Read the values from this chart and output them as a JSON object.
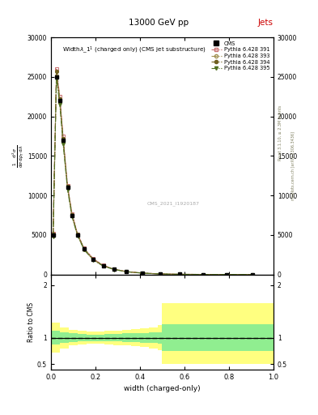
{
  "title_top": "13000 GeV pp",
  "title_right": "Jets",
  "xlabel": "width (charged-only)",
  "ylabel_ratio": "Ratio to CMS",
  "watermark": "CMS_2021_I1920187",
  "rivet_label": "Rivet 3.1.10, ≥ 2.3M events",
  "mcplots_label": "mcplots.cern.ch [arXiv:1306.3436]",
  "legend_entries": [
    "CMS",
    "Pythia 6.428 391",
    "Pythia 6.428 393",
    "Pythia 6.428 394",
    "Pythia 6.428 395"
  ],
  "x_data": [
    0.01,
    0.025,
    0.04,
    0.055,
    0.075,
    0.095,
    0.12,
    0.15,
    0.19,
    0.235,
    0.285,
    0.34,
    0.41,
    0.49,
    0.58,
    0.685,
    0.79,
    0.905
  ],
  "cms_y": [
    5000,
    25000,
    22000,
    17000,
    11000,
    7500,
    5000,
    3200,
    1900,
    1100,
    650,
    350,
    180,
    70,
    25,
    8,
    3,
    1
  ],
  "py391_y": [
    5200,
    26000,
    22500,
    17500,
    11200,
    7700,
    5100,
    3300,
    2000,
    1150,
    680,
    370,
    190,
    75,
    27,
    9,
    3,
    1
  ],
  "py393_y": [
    4900,
    25200,
    21800,
    16800,
    10900,
    7400,
    4950,
    3150,
    1870,
    1080,
    640,
    345,
    175,
    68,
    24,
    8,
    3,
    1
  ],
  "py394_y": [
    5100,
    25700,
    22200,
    17200,
    11100,
    7600,
    5050,
    3250,
    1950,
    1120,
    660,
    360,
    185,
    72,
    26,
    8,
    3,
    1
  ],
  "py395_y": [
    4800,
    24800,
    21500,
    16500,
    10700,
    7300,
    4880,
    3100,
    1840,
    1060,
    630,
    340,
    172,
    66,
    23,
    7,
    2,
    1
  ],
  "ylim_main": [
    0,
    30000
  ],
  "ylim_ratio": [
    0.4,
    2.2
  ],
  "xlim": [
    0,
    1.0
  ],
  "yticks_main": [
    0,
    5000,
    10000,
    15000,
    20000,
    25000,
    30000
  ],
  "ytick_labels_main": [
    "0",
    "5000",
    "10000",
    "15000",
    "20000",
    "25000",
    "30000"
  ],
  "ratio_x_bins": [
    0.0,
    0.04,
    0.08,
    0.12,
    0.16,
    0.2,
    0.24,
    0.28,
    0.32,
    0.36,
    0.4,
    0.44,
    0.48,
    0.5,
    1.0
  ],
  "yellow_band_low": [
    0.72,
    0.8,
    0.85,
    0.87,
    0.88,
    0.88,
    0.87,
    0.86,
    0.85,
    0.84,
    0.82,
    0.8,
    0.76,
    0.5,
    0.5
  ],
  "yellow_band_high": [
    1.28,
    1.2,
    1.15,
    1.13,
    1.12,
    1.12,
    1.13,
    1.14,
    1.15,
    1.16,
    1.18,
    1.2,
    1.24,
    1.65,
    1.65
  ],
  "green_band_low": [
    0.87,
    0.9,
    0.92,
    0.93,
    0.94,
    0.94,
    0.93,
    0.93,
    0.92,
    0.92,
    0.91,
    0.9,
    0.89,
    0.75,
    0.75
  ],
  "green_band_high": [
    1.13,
    1.1,
    1.08,
    1.07,
    1.06,
    1.06,
    1.07,
    1.07,
    1.08,
    1.08,
    1.09,
    1.1,
    1.11,
    1.25,
    1.25
  ],
  "color_cms": "#000000",
  "color_391": "#c87070",
  "color_393": "#a09050",
  "color_394": "#706020",
  "color_395": "#507020",
  "color_yellow": "#ffff80",
  "color_green": "#90ee90",
  "bg_color": "#ffffff"
}
